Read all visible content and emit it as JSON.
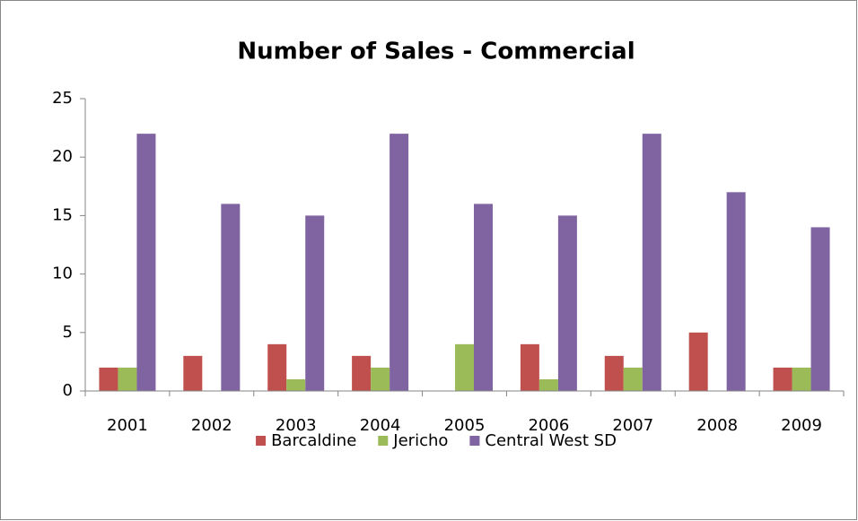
{
  "chart_data": {
    "type": "bar",
    "title": "Number of Sales - Commercial",
    "categories": [
      "2001",
      "2002",
      "2003",
      "2004",
      "2005",
      "2006",
      "2007",
      "2008",
      "2009"
    ],
    "series": [
      {
        "name": "Barcaldine",
        "color": "#c0504d",
        "values": [
          2,
          3,
          4,
          3,
          0,
          4,
          3,
          5,
          2
        ]
      },
      {
        "name": "Jericho",
        "color": "#9bbb59",
        "values": [
          2,
          0,
          1,
          2,
          4,
          1,
          2,
          0,
          2
        ]
      },
      {
        "name": "Central West SD",
        "color": "#8064a2",
        "values": [
          22,
          16,
          15,
          22,
          16,
          15,
          22,
          17,
          14
        ]
      }
    ],
    "ylim": [
      0,
      25
    ],
    "yticks": [
      0,
      5,
      10,
      15,
      20,
      25
    ],
    "grid": false,
    "legend": "bottom"
  }
}
